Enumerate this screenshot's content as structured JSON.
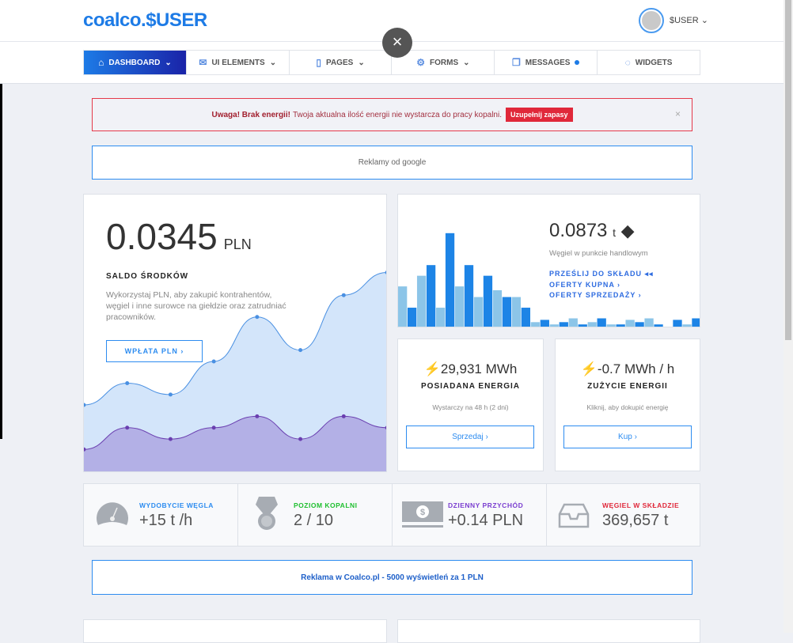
{
  "header": {
    "logo": "coalco.$USER",
    "username": "$USER",
    "chevron": "⌄",
    "close": "×"
  },
  "nav": [
    {
      "label": "DASHBOARD",
      "icon": "⌂",
      "chev": "⌄"
    },
    {
      "label": "UI ELEMENTS",
      "icon": "✉",
      "chev": "⌄"
    },
    {
      "label": "PAGES",
      "icon": "▯",
      "chev": "⌄"
    },
    {
      "label": "FORMS",
      "icon": "⚙",
      "chev": "⌄"
    },
    {
      "label": "MESSAGES",
      "icon": "❐"
    },
    {
      "label": "WIDGETS",
      "icon": "◌"
    }
  ],
  "alert": {
    "strong": "Uwaga! Brak energii!",
    "text": "Twoja aktualna ilość energii nie wystarcza do pracy kopalni.",
    "button": "Uzupełnij zapasy",
    "close": "×"
  },
  "ad_top": "Reklamy od google",
  "balance": {
    "value": "0.0345",
    "unit": "PLN",
    "label": "SALDO ŚRODKÓW",
    "desc": "Wykorzystaj PLN, aby zakupić kontrahentów, węgiel i inne surowce na giełdzie oraz zatrudniać pracowników.",
    "button": "WPŁATA PLN ›"
  },
  "coal_trade": {
    "value": "0.0873",
    "unit": "t",
    "sub": "Węgiel w punkcie handlowym",
    "links": [
      "PRZEŚLIJ DO SKŁADU ◂◂",
      "OFERTY KUPNA ›",
      "OFERTY SPRZEDAŻY ›"
    ]
  },
  "energy_owned": {
    "value": "29,931 MWh",
    "label": "POSIADANA ENERGIA",
    "sub": "Wystarczy na 48 h (2 dni)",
    "button": "Sprzedaj ›"
  },
  "energy_use": {
    "value": "-0.7 MWh / h",
    "label": "ZUŻYCIE ENERGII",
    "sub": "Kliknij, aby dokupić energię",
    "button": "Kup ›"
  },
  "stats": [
    {
      "label": "WYDOBYCIE WĘGLA",
      "value": "+15 t /h",
      "color": "#2d8cf0"
    },
    {
      "label": "POZIOM KOPALNI",
      "value": "2 / 10",
      "color": "#1fbf2f"
    },
    {
      "label": "DZIENNY PRZYCHÓD",
      "value": "+0.14 PLN",
      "color": "#7b3fd0"
    },
    {
      "label": "WĘGIEL W SKŁADZIE",
      "value": "369,657 t",
      "color": "#e0283a"
    }
  ],
  "ad_bottom": "Reklama w Coalco.pl - 5000 wyświetleń za 1 PLN",
  "chart_data": [
    {
      "type": "area",
      "series": [
        {
          "name": "blue",
          "values": [
            71,
            94,
            82,
            117,
            164,
            129,
            187,
            211
          ],
          "color": "#4a90e2"
        },
        {
          "name": "purple",
          "values": [
            24,
            47,
            35,
            47,
            59,
            35,
            59,
            47
          ],
          "color": "#6a3fb0"
        }
      ],
      "ylim": [
        0,
        250
      ]
    },
    {
      "type": "bar",
      "series": [
        {
          "name": "light",
          "values": [
            55,
            69,
            27,
            55,
            41,
            50,
            41,
            8,
            5,
            13,
            8,
            5,
            11,
            13,
            2,
            5
          ],
          "color": "#8cc5e8"
        },
        {
          "name": "dark",
          "values": [
            27,
            83,
            125,
            83,
            69,
            41,
            27,
            11,
            8,
            5,
            13,
            5,
            8,
            5,
            11,
            13
          ],
          "color": "#1d84e6"
        }
      ],
      "ylim": [
        0,
        130
      ]
    }
  ]
}
